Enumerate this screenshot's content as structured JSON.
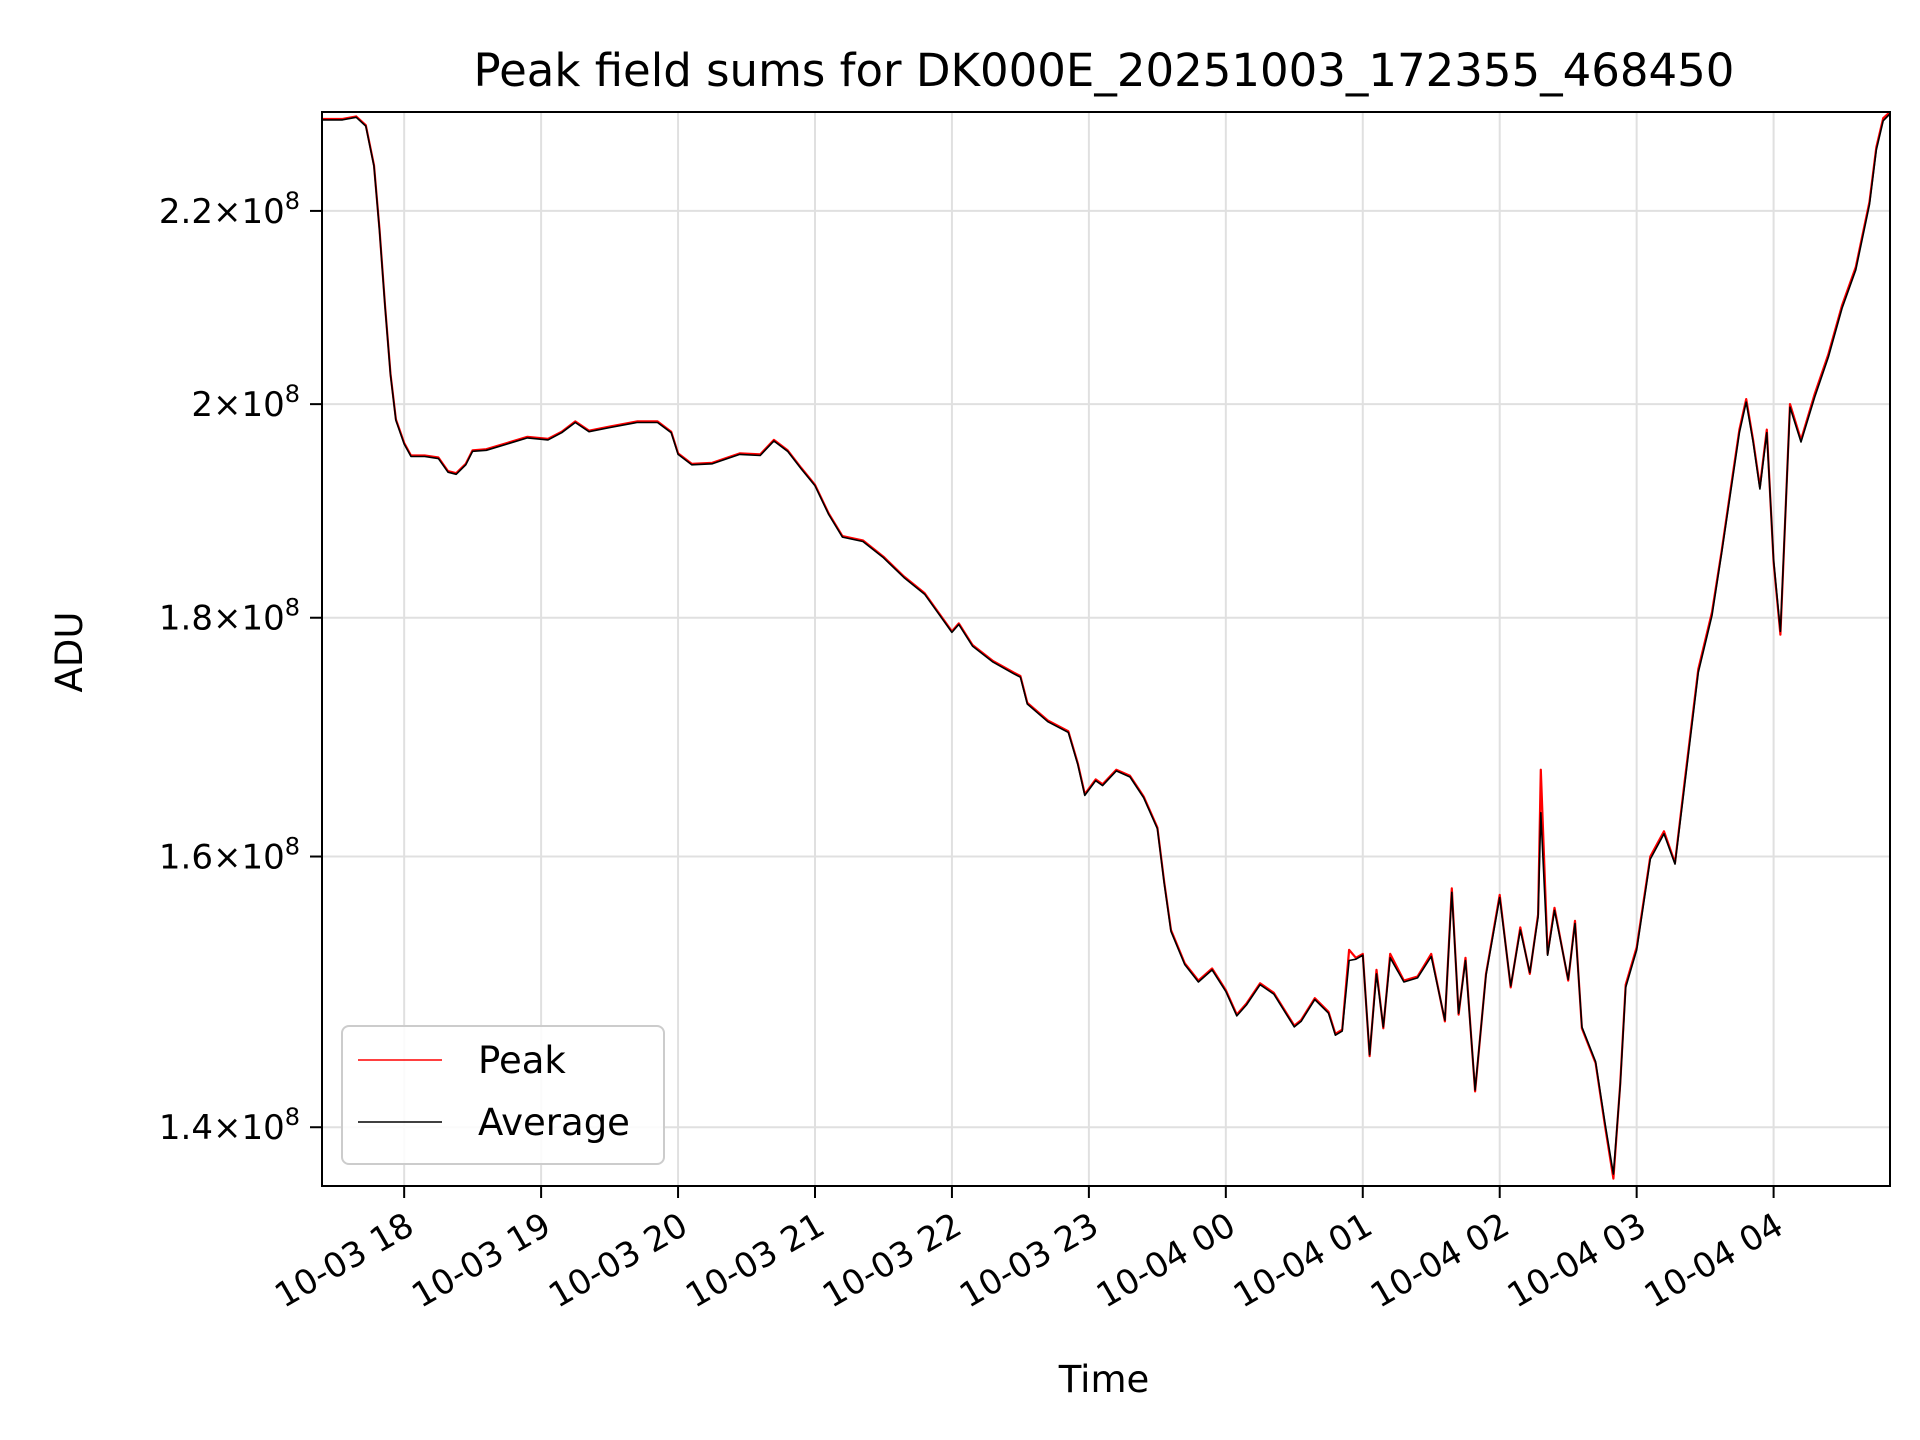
{
  "chart_data": {
    "type": "line",
    "title": "Peak field sums for DK000E_20251003_172355_468450",
    "xlabel": "Time",
    "ylabel": "ADU",
    "x_unit": "hours since 10-03 17:00",
    "xlim": [
      0.4,
      11.85
    ],
    "ylim": [
      136000000,
      231000000
    ],
    "yscale": "log",
    "grid": true,
    "legend_position": "lower-left",
    "x_ticks": [
      {
        "value": 1,
        "label": "10-03 18"
      },
      {
        "value": 2,
        "label": "10-03 19"
      },
      {
        "value": 3,
        "label": "10-03 20"
      },
      {
        "value": 4,
        "label": "10-03 21"
      },
      {
        "value": 5,
        "label": "10-03 22"
      },
      {
        "value": 6,
        "label": "10-03 23"
      },
      {
        "value": 7,
        "label": "10-04 00"
      },
      {
        "value": 8,
        "label": "10-04 01"
      },
      {
        "value": 9,
        "label": "10-04 02"
      },
      {
        "value": 10,
        "label": "10-04 03"
      },
      {
        "value": 11,
        "label": "10-04 04"
      }
    ],
    "y_ticks": [
      {
        "value": 140000000,
        "mantissa": "1.4",
        "exponent": "8"
      },
      {
        "value": 160000000,
        "mantissa": "1.6",
        "exponent": "8"
      },
      {
        "value": 180000000,
        "mantissa": "1.8",
        "exponent": "8"
      },
      {
        "value": 200000000,
        "mantissa": "2",
        "exponent": "8"
      },
      {
        "value": 220000000,
        "mantissa": "2.2",
        "exponent": "8"
      }
    ],
    "series": [
      {
        "name": "Peak",
        "color": "#ff0000",
        "points": [
          [
            0.4,
            230.2
          ],
          [
            0.55,
            230.2
          ],
          [
            0.65,
            230.5
          ],
          [
            0.72,
            229.5
          ],
          [
            0.78,
            225
          ],
          [
            0.82,
            218
          ],
          [
            0.86,
            210
          ],
          [
            0.9,
            203
          ],
          [
            0.94,
            198.5
          ],
          [
            1.0,
            196.2
          ],
          [
            1.05,
            195
          ],
          [
            1.15,
            195
          ],
          [
            1.25,
            194.8
          ],
          [
            1.32,
            193.5
          ],
          [
            1.38,
            193.3
          ],
          [
            1.45,
            194.2
          ],
          [
            1.5,
            195.5
          ],
          [
            1.6,
            195.6
          ],
          [
            1.75,
            196.2
          ],
          [
            1.9,
            196.8
          ],
          [
            2.05,
            196.6
          ],
          [
            2.15,
            197.3
          ],
          [
            2.25,
            198.3
          ],
          [
            2.35,
            197.4
          ],
          [
            2.5,
            197.8
          ],
          [
            2.7,
            198.3
          ],
          [
            2.85,
            198.3
          ],
          [
            2.95,
            197.3
          ],
          [
            3.0,
            195.2
          ],
          [
            3.1,
            194.2
          ],
          [
            3.25,
            194.3
          ],
          [
            3.45,
            195.2
          ],
          [
            3.6,
            195.1
          ],
          [
            3.7,
            196.5
          ],
          [
            3.8,
            195.5
          ],
          [
            3.9,
            193.8
          ],
          [
            4.0,
            192.2
          ],
          [
            4.1,
            189.5
          ],
          [
            4.2,
            187.4
          ],
          [
            4.35,
            187.0
          ],
          [
            4.5,
            185.5
          ],
          [
            4.65,
            183.7
          ],
          [
            4.8,
            182.2
          ],
          [
            4.9,
            180.5
          ],
          [
            5.0,
            178.8
          ],
          [
            5.05,
            179.5
          ],
          [
            5.15,
            177.6
          ],
          [
            5.3,
            176.2
          ],
          [
            5.45,
            175.2
          ],
          [
            5.5,
            174.9
          ],
          [
            5.55,
            172.6
          ],
          [
            5.7,
            171.1
          ],
          [
            5.85,
            170.2
          ],
          [
            5.92,
            167.5
          ],
          [
            5.97,
            165.0
          ],
          [
            6.05,
            166.2
          ],
          [
            6.1,
            165.8
          ],
          [
            6.2,
            167.0
          ],
          [
            6.3,
            166.5
          ],
          [
            6.4,
            164.8
          ],
          [
            6.5,
            162.3
          ],
          [
            6.55,
            158.0
          ],
          [
            6.6,
            154.3
          ],
          [
            6.7,
            151.8
          ],
          [
            6.8,
            150.5
          ],
          [
            6.9,
            151.4
          ],
          [
            7.0,
            149.8
          ],
          [
            7.08,
            148.0
          ],
          [
            7.15,
            148.8
          ],
          [
            7.25,
            150.3
          ],
          [
            7.35,
            149.6
          ],
          [
            7.45,
            148.0
          ],
          [
            7.5,
            147.2
          ],
          [
            7.55,
            147.6
          ],
          [
            7.65,
            149.2
          ],
          [
            7.75,
            148.2
          ],
          [
            7.8,
            146.6
          ],
          [
            7.85,
            146.9
          ],
          [
            7.9,
            152.8
          ],
          [
            7.95,
            152.2
          ],
          [
            8.0,
            152.5
          ],
          [
            8.05,
            145.0
          ],
          [
            8.1,
            151.3
          ],
          [
            8.15,
            147.0
          ],
          [
            8.2,
            152.5
          ],
          [
            8.3,
            150.5
          ],
          [
            8.4,
            150.8
          ],
          [
            8.5,
            152.5
          ],
          [
            8.6,
            147.5
          ],
          [
            8.65,
            157.5
          ],
          [
            8.7,
            148.0
          ],
          [
            8.75,
            152.2
          ],
          [
            8.82,
            142.5
          ],
          [
            8.9,
            151.0
          ],
          [
            9.0,
            157.0
          ],
          [
            9.08,
            150.0
          ],
          [
            9.15,
            154.5
          ],
          [
            9.22,
            151.0
          ],
          [
            9.28,
            155.5
          ],
          [
            9.3,
            167.0
          ],
          [
            9.35,
            152.5
          ],
          [
            9.4,
            156.0
          ],
          [
            9.5,
            150.5
          ],
          [
            9.55,
            155.0
          ],
          [
            9.6,
            147.0
          ],
          [
            9.7,
            144.5
          ],
          [
            9.77,
            140.0
          ],
          [
            9.83,
            136.5
          ],
          [
            9.88,
            143.0
          ],
          [
            9.92,
            150.2
          ],
          [
            10.0,
            153.0
          ],
          [
            10.1,
            160.0
          ],
          [
            10.2,
            162.0
          ],
          [
            10.28,
            159.5
          ],
          [
            10.35,
            166.0
          ],
          [
            10.45,
            175.5
          ],
          [
            10.55,
            180.5
          ],
          [
            10.62,
            186.0
          ],
          [
            10.7,
            193.0
          ],
          [
            10.75,
            197.5
          ],
          [
            10.8,
            200.5
          ],
          [
            10.85,
            196.5
          ],
          [
            10.9,
            192.0
          ],
          [
            10.95,
            197.5
          ],
          [
            11.0,
            185.0
          ],
          [
            11.05,
            178.5
          ],
          [
            11.12,
            200.0
          ],
          [
            11.2,
            196.5
          ],
          [
            11.3,
            201.0
          ],
          [
            11.4,
            205.0
          ],
          [
            11.5,
            210.0
          ],
          [
            11.6,
            214.0
          ],
          [
            11.7,
            221.0
          ],
          [
            11.75,
            227.0
          ],
          [
            11.8,
            230.3
          ],
          [
            11.85,
            231.0
          ]
        ]
      },
      {
        "name": "Average",
        "color": "#000000",
        "points": [
          [
            0.4,
            230.1
          ],
          [
            0.55,
            230.1
          ],
          [
            0.65,
            230.4
          ],
          [
            0.72,
            229.4
          ],
          [
            0.78,
            224.9
          ],
          [
            0.82,
            217.9
          ],
          [
            0.86,
            209.9
          ],
          [
            0.9,
            202.9
          ],
          [
            0.94,
            198.4
          ],
          [
            1.0,
            196.1
          ],
          [
            1.05,
            194.9
          ],
          [
            1.15,
            194.9
          ],
          [
            1.25,
            194.7
          ],
          [
            1.32,
            193.4
          ],
          [
            1.38,
            193.2
          ],
          [
            1.45,
            194.1
          ],
          [
            1.5,
            195.4
          ],
          [
            1.6,
            195.5
          ],
          [
            1.75,
            196.1
          ],
          [
            1.9,
            196.7
          ],
          [
            2.05,
            196.5
          ],
          [
            2.15,
            197.2
          ],
          [
            2.25,
            198.2
          ],
          [
            2.35,
            197.3
          ],
          [
            2.5,
            197.7
          ],
          [
            2.7,
            198.2
          ],
          [
            2.85,
            198.2
          ],
          [
            2.95,
            197.2
          ],
          [
            3.0,
            195.1
          ],
          [
            3.1,
            194.1
          ],
          [
            3.25,
            194.2
          ],
          [
            3.45,
            195.1
          ],
          [
            3.6,
            195.0
          ],
          [
            3.7,
            196.4
          ],
          [
            3.8,
            195.4
          ],
          [
            3.9,
            193.7
          ],
          [
            4.0,
            192.1
          ],
          [
            4.1,
            189.4
          ],
          [
            4.2,
            187.3
          ],
          [
            4.35,
            186.9
          ],
          [
            4.5,
            185.4
          ],
          [
            4.65,
            183.6
          ],
          [
            4.8,
            182.1
          ],
          [
            4.9,
            180.4
          ],
          [
            5.0,
            178.7
          ],
          [
            5.05,
            179.4
          ],
          [
            5.15,
            177.5
          ],
          [
            5.3,
            176.1
          ],
          [
            5.45,
            175.1
          ],
          [
            5.5,
            174.8
          ],
          [
            5.55,
            172.5
          ],
          [
            5.7,
            171.0
          ],
          [
            5.85,
            170.1
          ],
          [
            5.92,
            167.4
          ],
          [
            5.97,
            164.9
          ],
          [
            6.05,
            166.1
          ],
          [
            6.1,
            165.7
          ],
          [
            6.2,
            166.9
          ],
          [
            6.3,
            166.4
          ],
          [
            6.4,
            164.7
          ],
          [
            6.5,
            162.2
          ],
          [
            6.55,
            157.9
          ],
          [
            6.6,
            154.2
          ],
          [
            6.7,
            151.7
          ],
          [
            6.8,
            150.4
          ],
          [
            6.9,
            151.3
          ],
          [
            7.0,
            149.7
          ],
          [
            7.08,
            147.9
          ],
          [
            7.15,
            148.7
          ],
          [
            7.25,
            150.2
          ],
          [
            7.35,
            149.5
          ],
          [
            7.45,
            147.9
          ],
          [
            7.5,
            147.1
          ],
          [
            7.55,
            147.5
          ],
          [
            7.65,
            149.1
          ],
          [
            7.75,
            148.1
          ],
          [
            7.8,
            146.5
          ],
          [
            7.85,
            146.8
          ],
          [
            7.9,
            152.0
          ],
          [
            7.95,
            152.1
          ],
          [
            8.0,
            152.4
          ],
          [
            8.05,
            145.1
          ],
          [
            8.1,
            151.0
          ],
          [
            8.15,
            147.1
          ],
          [
            8.2,
            152.2
          ],
          [
            8.3,
            150.4
          ],
          [
            8.4,
            150.7
          ],
          [
            8.5,
            152.3
          ],
          [
            8.6,
            147.6
          ],
          [
            8.65,
            157.2
          ],
          [
            8.7,
            148.1
          ],
          [
            8.75,
            152.0
          ],
          [
            8.82,
            142.6
          ],
          [
            8.9,
            150.9
          ],
          [
            9.0,
            156.8
          ],
          [
            9.08,
            150.1
          ],
          [
            9.15,
            154.3
          ],
          [
            9.22,
            151.1
          ],
          [
            9.28,
            155.3
          ],
          [
            9.3,
            163.5
          ],
          [
            9.35,
            152.4
          ],
          [
            9.4,
            155.8
          ],
          [
            9.5,
            150.6
          ],
          [
            9.55,
            154.8
          ],
          [
            9.6,
            147.1
          ],
          [
            9.7,
            144.6
          ],
          [
            9.77,
            140.2
          ],
          [
            9.83,
            136.8
          ],
          [
            9.88,
            142.9
          ],
          [
            9.92,
            150.0
          ],
          [
            10.0,
            152.8
          ],
          [
            10.1,
            159.8
          ],
          [
            10.2,
            161.8
          ],
          [
            10.28,
            159.4
          ],
          [
            10.35,
            165.7
          ],
          [
            10.45,
            175.2
          ],
          [
            10.55,
            180.2
          ],
          [
            10.62,
            185.8
          ],
          [
            10.7,
            192.7
          ],
          [
            10.75,
            197.2
          ],
          [
            10.8,
            200.2
          ],
          [
            10.85,
            196.3
          ],
          [
            10.9,
            191.8
          ],
          [
            10.95,
            197.2
          ],
          [
            11.0,
            185.2
          ],
          [
            11.05,
            178.8
          ],
          [
            11.12,
            199.7
          ],
          [
            11.2,
            196.3
          ],
          [
            11.3,
            200.7
          ],
          [
            11.4,
            204.7
          ],
          [
            11.5,
            209.7
          ],
          [
            11.6,
            213.7
          ],
          [
            11.7,
            220.7
          ],
          [
            11.75,
            226.7
          ],
          [
            11.8,
            230.0
          ],
          [
            11.85,
            230.8
          ]
        ]
      }
    ],
    "y_value_unit": "millions ADU in series points"
  }
}
